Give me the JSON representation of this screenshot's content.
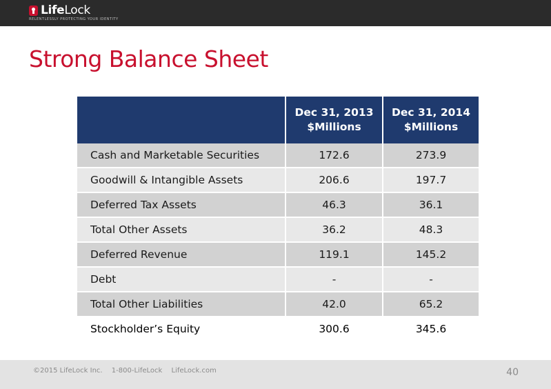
{
  "logo": {
    "life": "Life",
    "lock": "Lock",
    "tagline": "RELENTLESSLY PROTECTING YOUR IDENTITY"
  },
  "title": "Strong Balance Sheet",
  "table": {
    "headers": [
      "",
      "Dec 31, 2013\n$Millions",
      "Dec 31, 2014\n$Millions"
    ],
    "rows": [
      [
        "Cash and Marketable Securities",
        "172.6",
        "273.9"
      ],
      [
        "Goodwill & Intangible Assets",
        "206.6",
        "197.7"
      ],
      [
        "Deferred Tax Assets",
        "46.3",
        "36.1"
      ],
      [
        "Total Other Assets",
        "36.2",
        "48.3"
      ],
      [
        "Deferred Revenue",
        "119.1",
        "145.2"
      ],
      [
        "Debt",
        "-",
        "-"
      ],
      [
        "Total Other Liabilities",
        "42.0",
        "65.2"
      ],
      [
        "Stockholder’s Equity",
        "300.6",
        "345.6"
      ]
    ]
  },
  "footer": {
    "copyright": "©2015 LifeLock Inc.",
    "phone": "1-800-LifeLock",
    "site": "LifeLock.com",
    "page": "40"
  },
  "colors": {
    "brand_red": "#c8102e",
    "header_navy": "#1f3a6e",
    "topbar": "#2b2b2b"
  }
}
